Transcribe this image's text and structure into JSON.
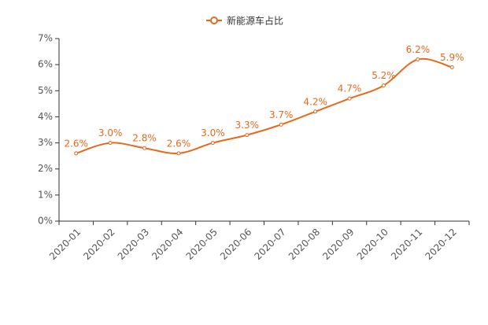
{
  "chart_data": {
    "type": "line",
    "categories": [
      "2020-01",
      "2020-02",
      "2020-03",
      "2020-04",
      "2020-05",
      "2020-06",
      "2020-07",
      "2020-08",
      "2020-09",
      "2020-10",
      "2020-11",
      "2020-12"
    ],
    "series": [
      {
        "name": "新能源车占比",
        "color": "#e8681a",
        "values": [
          2.6,
          3.0,
          2.8,
          2.6,
          3.0,
          3.3,
          3.7,
          4.2,
          4.7,
          5.2,
          6.2,
          5.9
        ],
        "value_labels": [
          "2.6%",
          "3.0%",
          "2.8%",
          "2.6%",
          "3.0%",
          "3.3%",
          "3.7%",
          "4.2%",
          "4.7%",
          "5.2%",
          "6.2%",
          "5.9%"
        ]
      }
    ],
    "ylim": [
      0,
      7
    ],
    "yticks": [
      {
        "value": 0,
        "label": "0%"
      },
      {
        "value": 1,
        "label": "1%"
      },
      {
        "value": 2,
        "label": "2%"
      },
      {
        "value": 3,
        "label": "3%"
      },
      {
        "value": 4,
        "label": "4%"
      },
      {
        "value": 5,
        "label": "5%"
      },
      {
        "value": 6,
        "label": "6%"
      },
      {
        "value": 7,
        "label": "7%"
      }
    ],
    "smooth": true,
    "grid": false
  }
}
